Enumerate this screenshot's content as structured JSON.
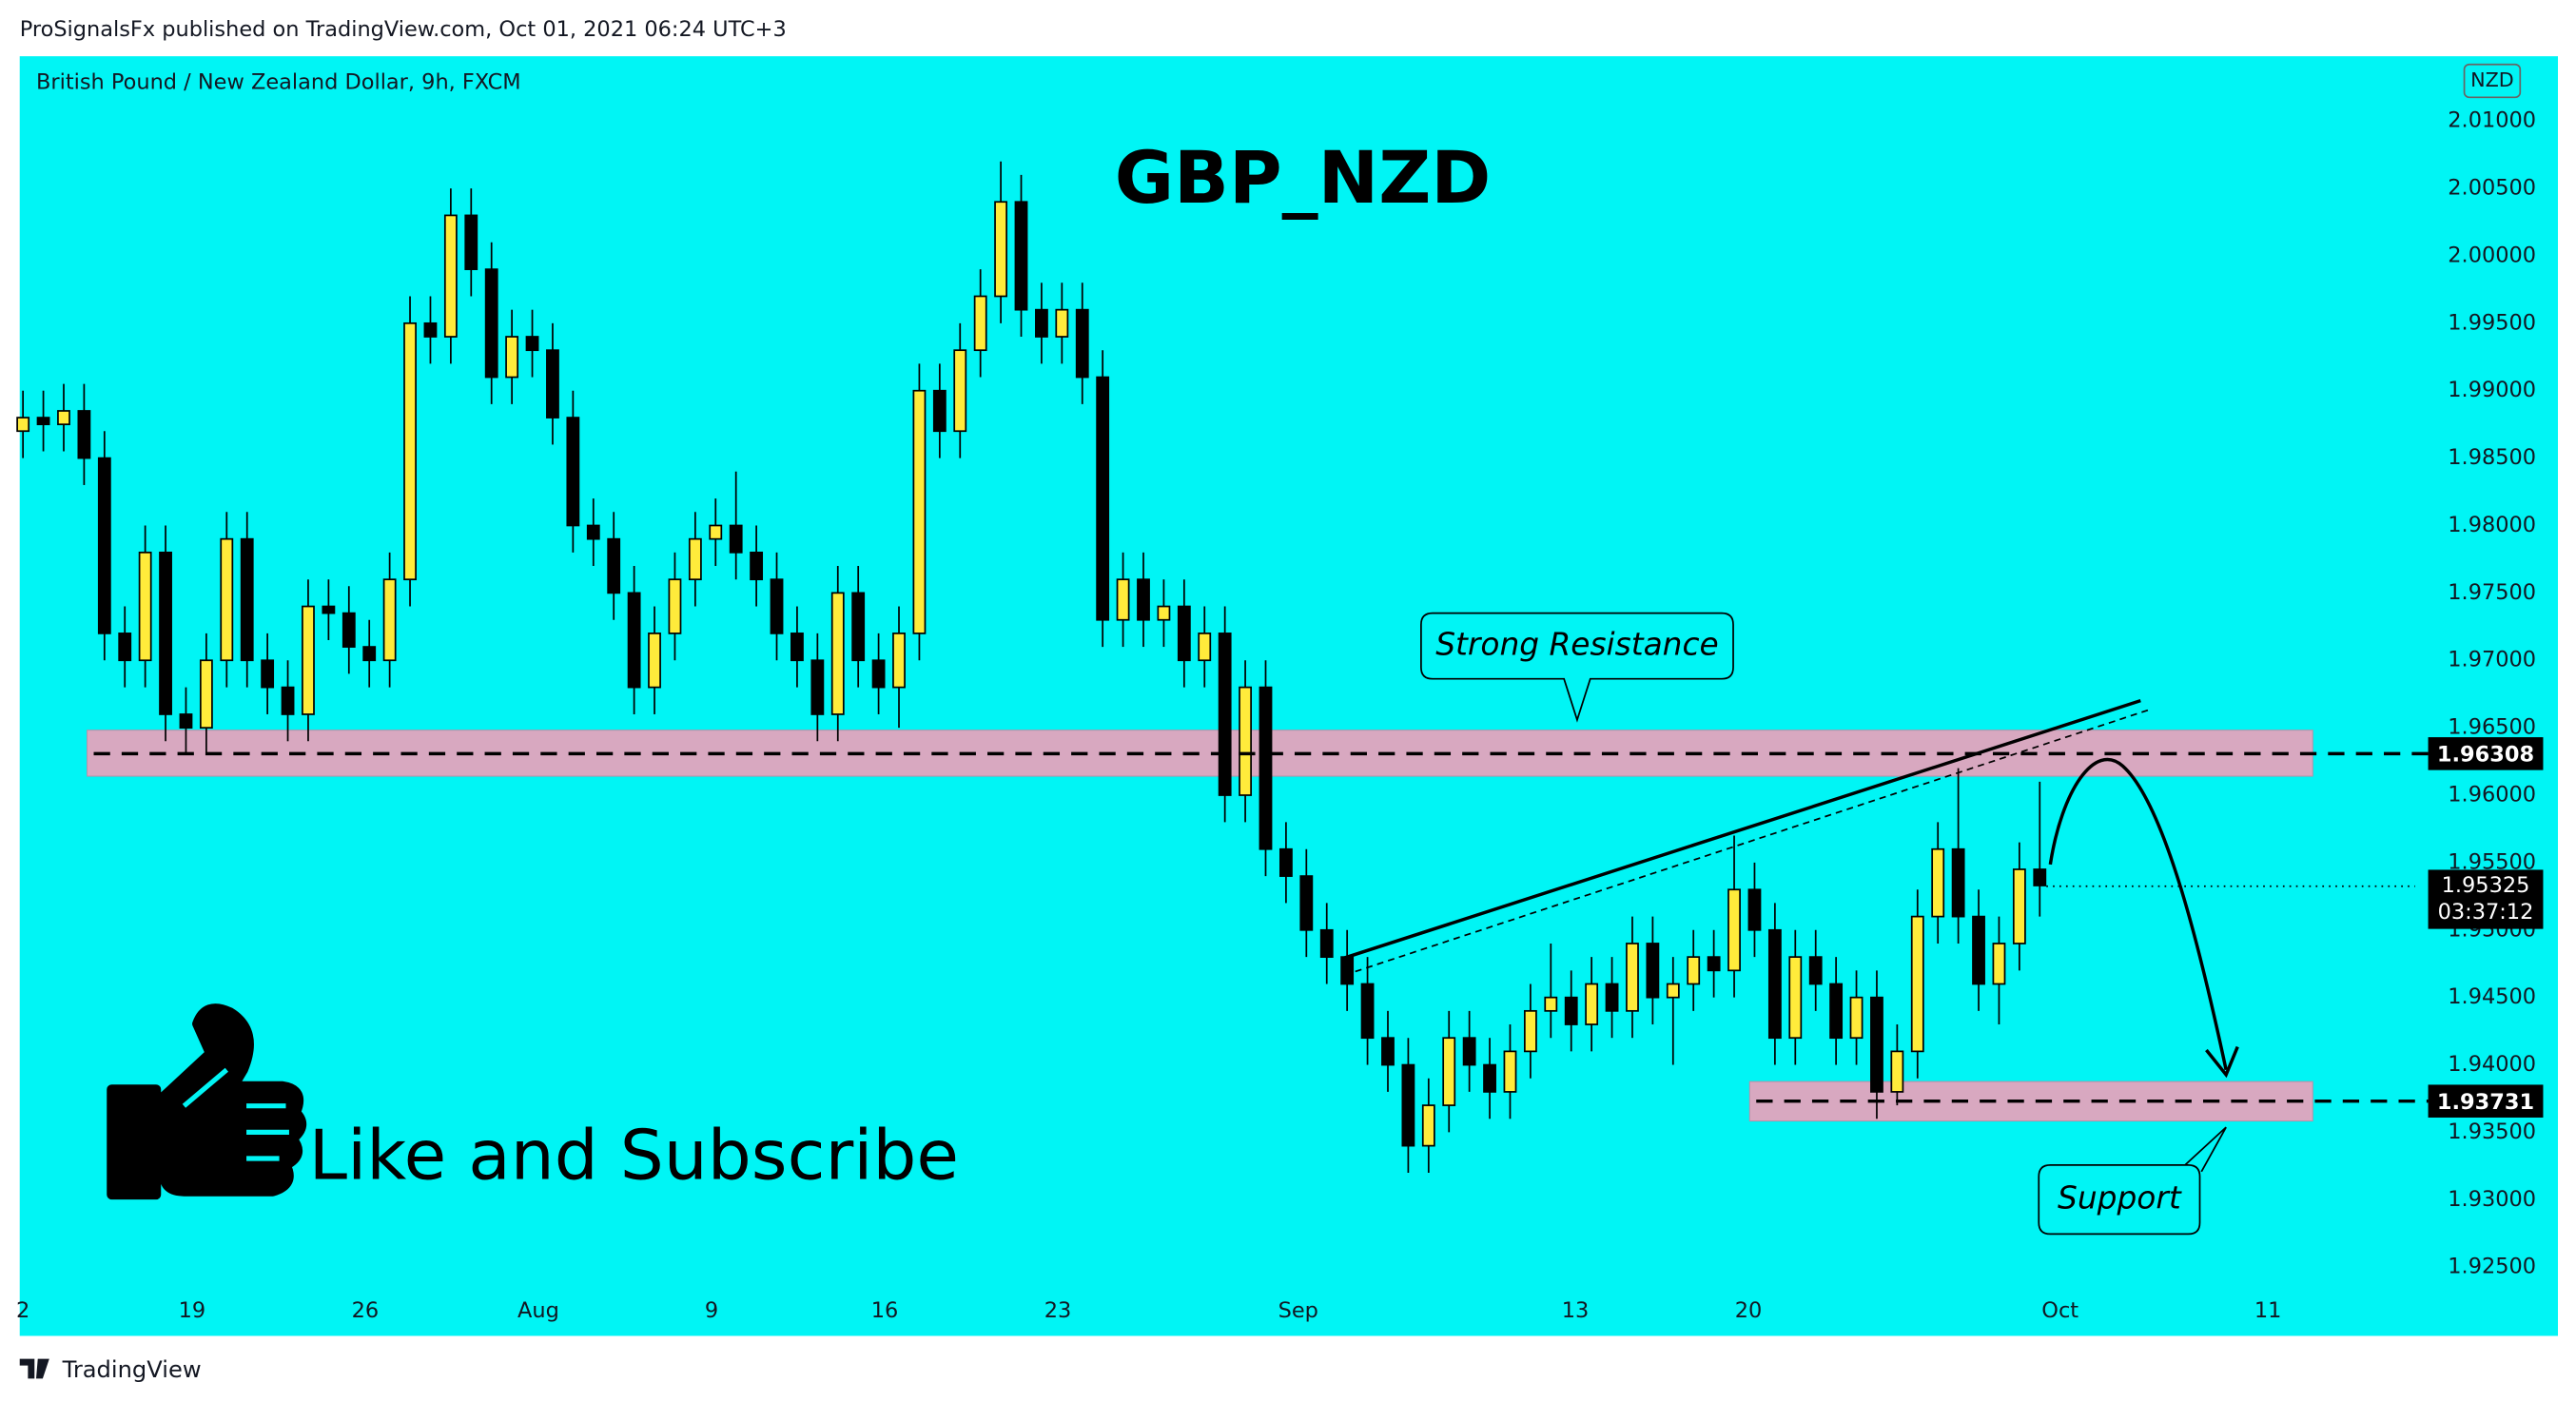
{
  "header": {
    "publisher_line": "ProSignalsFx published on TradingView.com, Oct 01, 2021 06:24 UTC+3"
  },
  "footer": {
    "brand": "TradingView"
  },
  "chart_data": {
    "type": "candlestick",
    "title": "GBP_NZD",
    "subtitle": "British Pound / New Zealand Dollar, 9h, FXCM",
    "currency": "NZD",
    "background": "#00f5f5",
    "up_color": "#ffeb3b",
    "down_color": "#000000",
    "open": [
      1.987,
      1.988,
      1.9875,
      1.9885,
      1.985,
      1.972,
      1.97,
      1.978,
      1.966,
      1.965,
      1.97,
      1.979,
      1.97,
      1.968,
      1.966,
      1.974,
      1.9735,
      1.971,
      1.97,
      1.976,
      1.995,
      1.994,
      2.003,
      1.999,
      1.991,
      1.994,
      1.993,
      1.988,
      1.98,
      1.979,
      1.975,
      1.968,
      1.972,
      1.976,
      1.979,
      1.98,
      1.978,
      1.976,
      1.972,
      1.97,
      1.966,
      1.975,
      1.97,
      1.968,
      1.972,
      1.99,
      1.987,
      1.993,
      1.997,
      2.004,
      1.996,
      1.994,
      1.996,
      1.991,
      1.973,
      1.976,
      1.973,
      1.974,
      1.97,
      1.972,
      1.96,
      1.968,
      1.956,
      1.954,
      1.95,
      1.948,
      1.946,
      1.942,
      1.94,
      1.934,
      1.937,
      1.942,
      1.94,
      1.938,
      1.941,
      1.944,
      1.945,
      1.943,
      1.946,
      1.944,
      1.949,
      1.945,
      1.946,
      1.948,
      1.947,
      1.953,
      1.95,
      1.942,
      1.948,
      1.946,
      1.942,
      1.945,
      1.938,
      1.941,
      1.951,
      1.956,
      1.951,
      1.946,
      1.949,
      1.9545
    ],
    "high": [
      1.99,
      1.99,
      1.9905,
      1.9905,
      1.987,
      1.974,
      1.98,
      1.98,
      1.968,
      1.972,
      1.981,
      1.981,
      1.972,
      1.97,
      1.976,
      1.976,
      1.9755,
      1.973,
      1.978,
      1.997,
      1.997,
      2.005,
      2.005,
      2.001,
      1.996,
      1.996,
      1.995,
      1.99,
      1.982,
      1.981,
      1.977,
      1.974,
      1.978,
      1.981,
      1.982,
      1.984,
      1.98,
      1.978,
      1.974,
      1.972,
      1.977,
      1.977,
      1.972,
      1.974,
      1.992,
      1.992,
      1.995,
      1.999,
      2.007,
      2.006,
      1.998,
      1.998,
      1.998,
      1.993,
      1.978,
      1.978,
      1.976,
      1.976,
      1.974,
      1.974,
      1.97,
      1.97,
      1.958,
      1.956,
      1.952,
      1.95,
      1.948,
      1.944,
      1.942,
      1.939,
      1.944,
      1.944,
      1.942,
      1.943,
      1.946,
      1.949,
      1.947,
      1.948,
      1.948,
      1.951,
      1.951,
      1.948,
      1.95,
      1.95,
      1.957,
      1.955,
      1.952,
      1.95,
      1.95,
      1.948,
      1.947,
      1.947,
      1.943,
      1.953,
      1.958,
      1.962,
      1.953,
      1.951,
      1.9565,
      1.961
    ],
    "low": [
      1.985,
      1.9855,
      1.9855,
      1.983,
      1.97,
      1.968,
      1.968,
      1.964,
      1.963,
      1.963,
      1.968,
      1.968,
      1.966,
      1.964,
      1.964,
      1.9715,
      1.969,
      1.968,
      1.968,
      1.974,
      1.992,
      1.992,
      1.997,
      1.989,
      1.989,
      1.991,
      1.986,
      1.978,
      1.977,
      1.973,
      1.966,
      1.966,
      1.97,
      1.974,
      1.977,
      1.976,
      1.974,
      1.97,
      1.968,
      1.964,
      1.964,
      1.968,
      1.966,
      1.965,
      1.97,
      1.985,
      1.985,
      1.991,
      1.995,
      1.994,
      1.992,
      1.992,
      1.989,
      1.971,
      1.971,
      1.971,
      1.971,
      1.968,
      1.968,
      1.958,
      1.958,
      1.954,
      1.952,
      1.948,
      1.946,
      1.944,
      1.94,
      1.938,
      1.932,
      1.932,
      1.935,
      1.938,
      1.936,
      1.936,
      1.939,
      1.942,
      1.941,
      1.941,
      1.942,
      1.942,
      1.943,
      1.94,
      1.944,
      1.945,
      1.945,
      1.948,
      1.94,
      1.94,
      1.944,
      1.94,
      1.94,
      1.936,
      1.937,
      1.939,
      1.949,
      1.949,
      1.944,
      1.943,
      1.947,
      1.951
    ],
    "close": [
      1.988,
      1.9875,
      1.9885,
      1.985,
      1.972,
      1.97,
      1.978,
      1.966,
      1.965,
      1.97,
      1.979,
      1.97,
      1.968,
      1.966,
      1.974,
      1.9735,
      1.971,
      1.97,
      1.976,
      1.995,
      1.994,
      2.003,
      1.999,
      1.991,
      1.994,
      1.993,
      1.988,
      1.98,
      1.979,
      1.975,
      1.968,
      1.972,
      1.976,
      1.979,
      1.98,
      1.978,
      1.976,
      1.972,
      1.97,
      1.966,
      1.975,
      1.97,
      1.968,
      1.972,
      1.99,
      1.987,
      1.993,
      1.997,
      2.004,
      1.996,
      1.994,
      1.996,
      1.991,
      1.973,
      1.976,
      1.973,
      1.974,
      1.97,
      1.972,
      1.96,
      1.968,
      1.956,
      1.954,
      1.95,
      1.948,
      1.946,
      1.942,
      1.94,
      1.934,
      1.937,
      1.942,
      1.94,
      1.938,
      1.941,
      1.944,
      1.945,
      1.943,
      1.946,
      1.944,
      1.949,
      1.945,
      1.946,
      1.948,
      1.947,
      1.953,
      1.95,
      1.942,
      1.948,
      1.946,
      1.942,
      1.945,
      1.938,
      1.941,
      1.951,
      1.956,
      1.951,
      1.946,
      1.949,
      1.9545,
      1.9533
    ],
    "xlim": [
      -0.16,
      117.42
    ],
    "ylim": [
      1.9199,
      2.0148
    ],
    "xticks": [
      {
        "value": 0,
        "label": "2"
      },
      {
        "value": 8.3,
        "label": "19"
      },
      {
        "value": 16.8,
        "label": "26"
      },
      {
        "value": 25.3,
        "label": "Aug"
      },
      {
        "value": 33.8,
        "label": "9"
      },
      {
        "value": 42.3,
        "label": "16"
      },
      {
        "value": 50.8,
        "label": "23"
      },
      {
        "value": 62.6,
        "label": "Sep"
      },
      {
        "value": 76.2,
        "label": "13"
      },
      {
        "value": 84.7,
        "label": "20"
      },
      {
        "value": 100,
        "label": "Oct"
      },
      {
        "value": 110.2,
        "label": "11"
      }
    ],
    "yticks": [
      {
        "value": 2.01,
        "label": "2.01000"
      },
      {
        "value": 2.005,
        "label": "2.00500"
      },
      {
        "value": 2.0,
        "label": "2.00000"
      },
      {
        "value": 1.995,
        "label": "1.99500"
      },
      {
        "value": 1.99,
        "label": "1.99000"
      },
      {
        "value": 1.985,
        "label": "1.98500"
      },
      {
        "value": 1.98,
        "label": "1.98000"
      },
      {
        "value": 1.975,
        "label": "1.97500"
      },
      {
        "value": 1.97,
        "label": "1.97000"
      },
      {
        "value": 1.965,
        "label": "1.96500"
      },
      {
        "value": 1.96,
        "label": "1.96000"
      },
      {
        "value": 1.955,
        "label": "1.95500"
      },
      {
        "value": 1.95,
        "label": "1.95000"
      },
      {
        "value": 1.945,
        "label": "1.94500"
      },
      {
        "value": 1.94,
        "label": "1.94000"
      },
      {
        "value": 1.935,
        "label": "1.93500"
      },
      {
        "value": 1.93,
        "label": "1.93000"
      },
      {
        "value": 1.925,
        "label": "1.92500"
      }
    ],
    "levels": [
      {
        "value": 1.96308,
        "zone": [
          1.96141,
          1.96482
        ],
        "from": 3.15,
        "to": 112.4
      },
      {
        "value": 1.93731,
        "zone": [
          1.93584,
          1.93876
        ],
        "from": 84.76,
        "to": 112.4
      }
    ],
    "zone_color": "#d8a8c0",
    "last_price": 1.95325,
    "countdown": "03:37:12",
    "trendlines": [
      {
        "x": [
          64.8,
          103.95
        ],
        "y": [
          1.9479,
          1.96701
        ],
        "dashed": false
      },
      {
        "x": [
          65.4,
          104.5
        ],
        "y": [
          1.94692,
          1.9664
        ],
        "dashed": true
      }
    ],
    "annotations": {
      "resistance": "Strong Resistance",
      "support": "Support",
      "cta": "Like and Subscribe"
    }
  }
}
